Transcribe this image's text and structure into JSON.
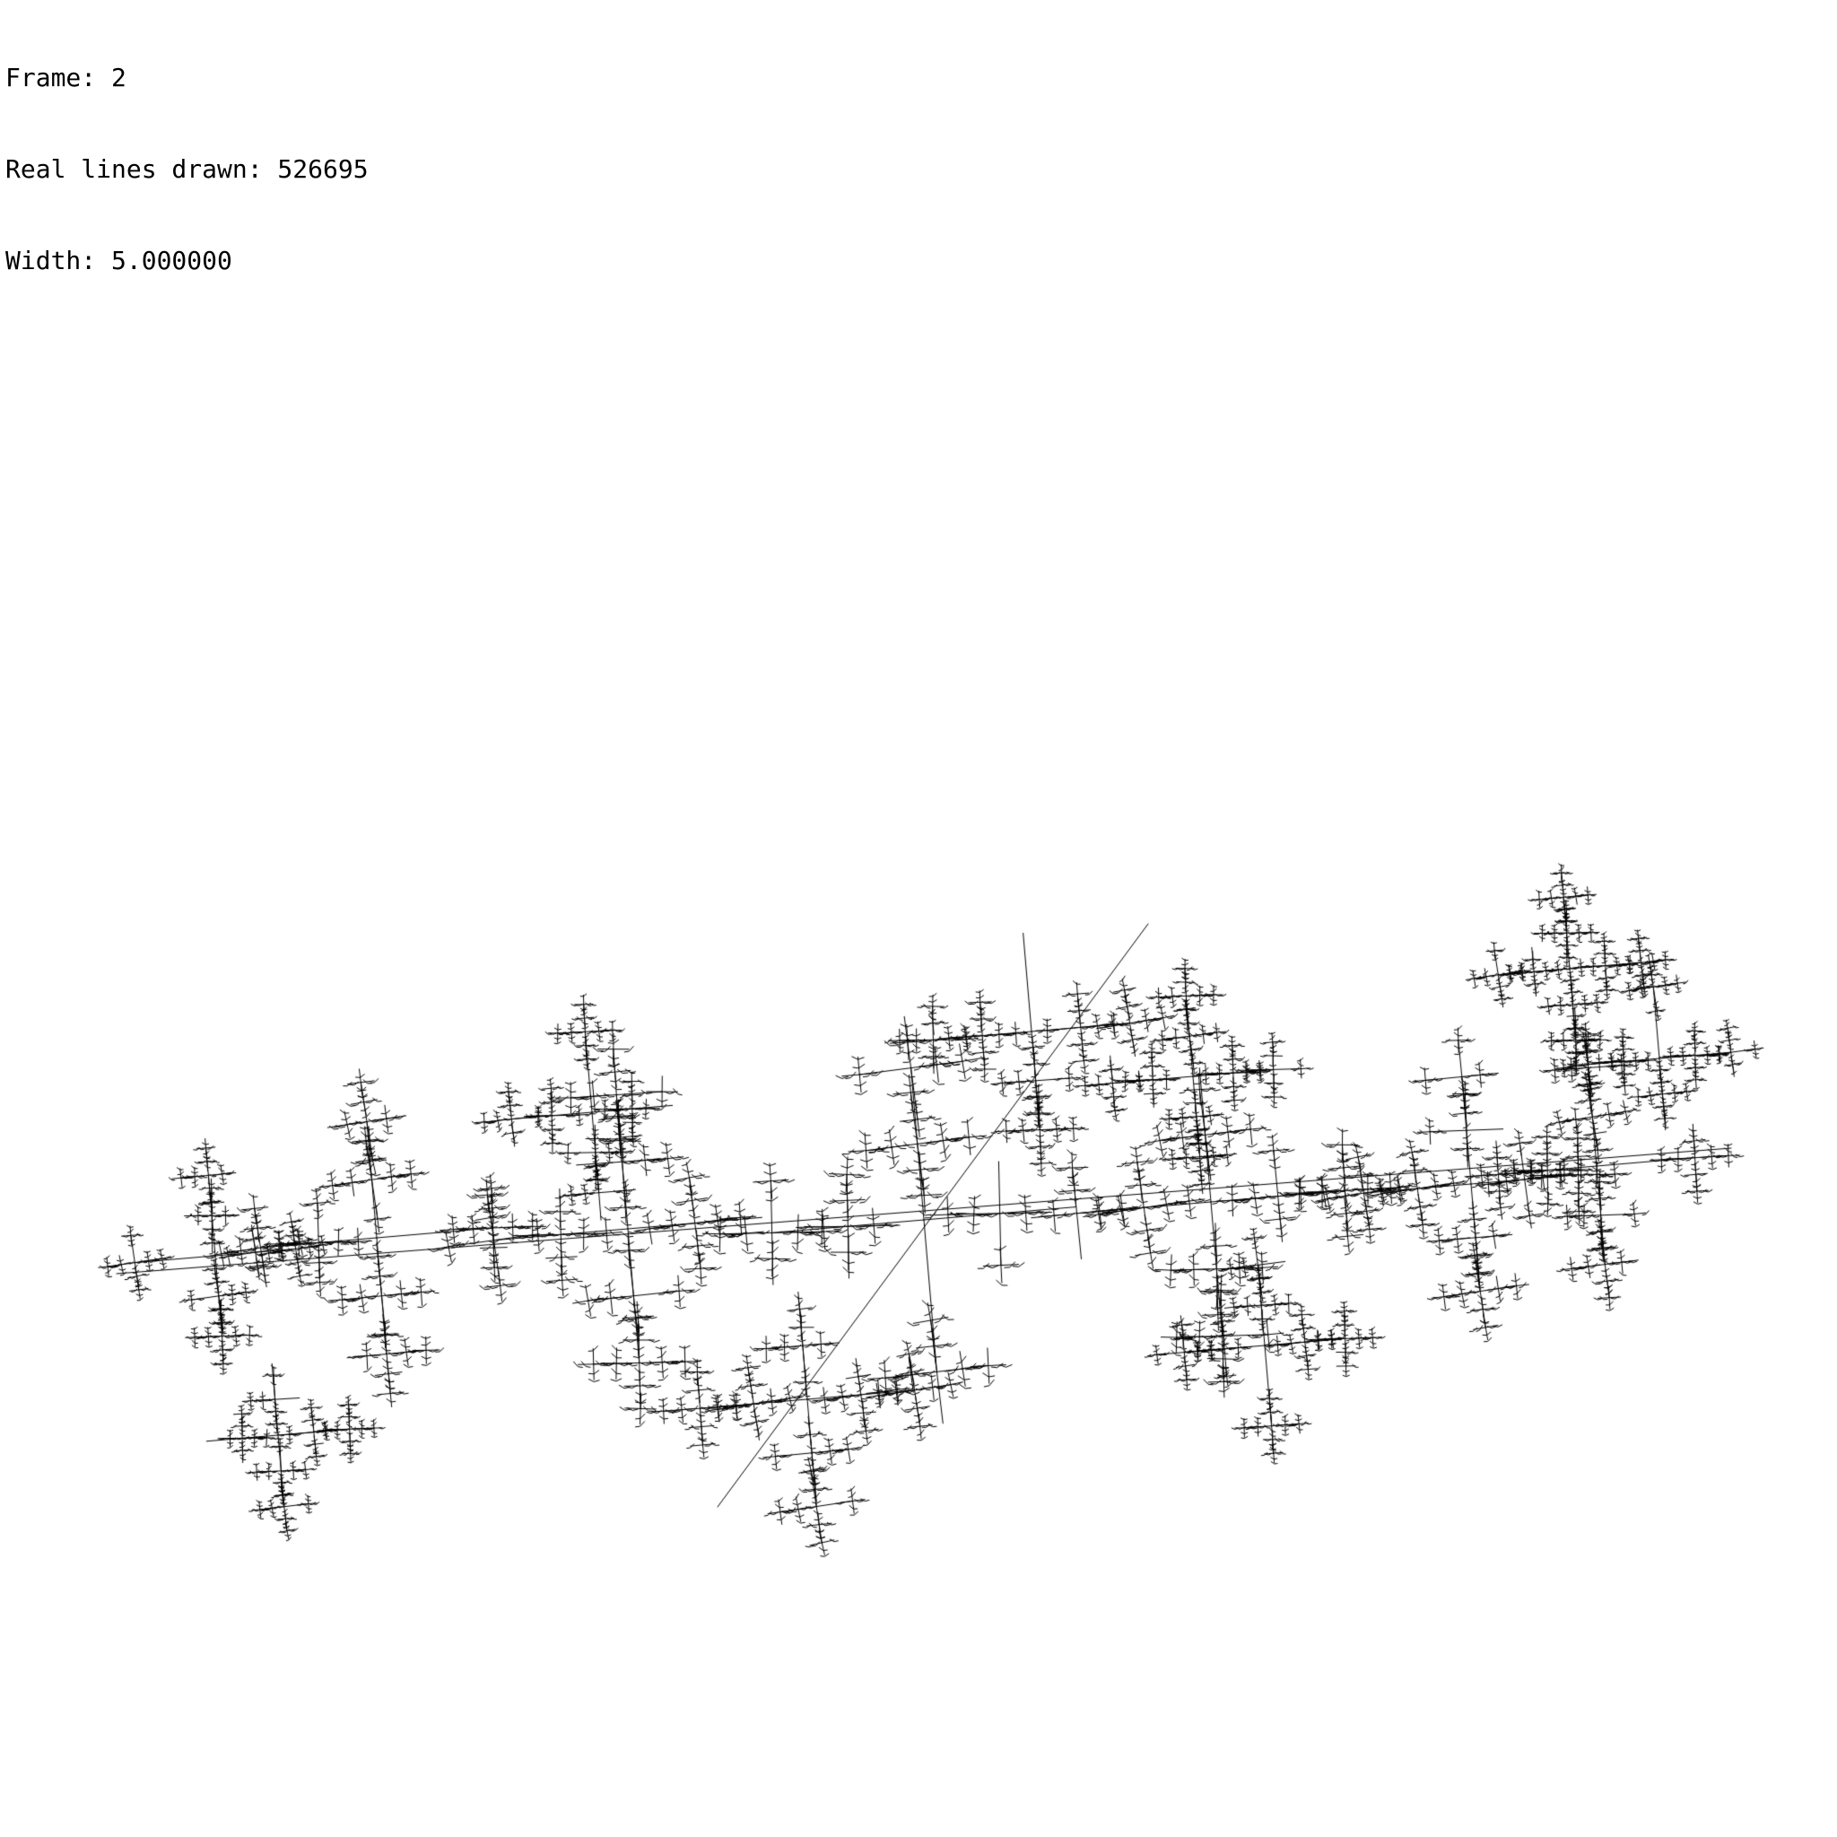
{
  "hud": {
    "frame": "Frame: 2",
    "lines": "Real lines drawn: 526695",
    "width": "Width: 5.000000"
  },
  "colors": {
    "background": "#ffffff",
    "ink": "#000000"
  },
  "fractal": {
    "name": "fractal-line-drawing",
    "frame": 2,
    "lines_drawn": 526695,
    "stroke_width": 5.0
  }
}
